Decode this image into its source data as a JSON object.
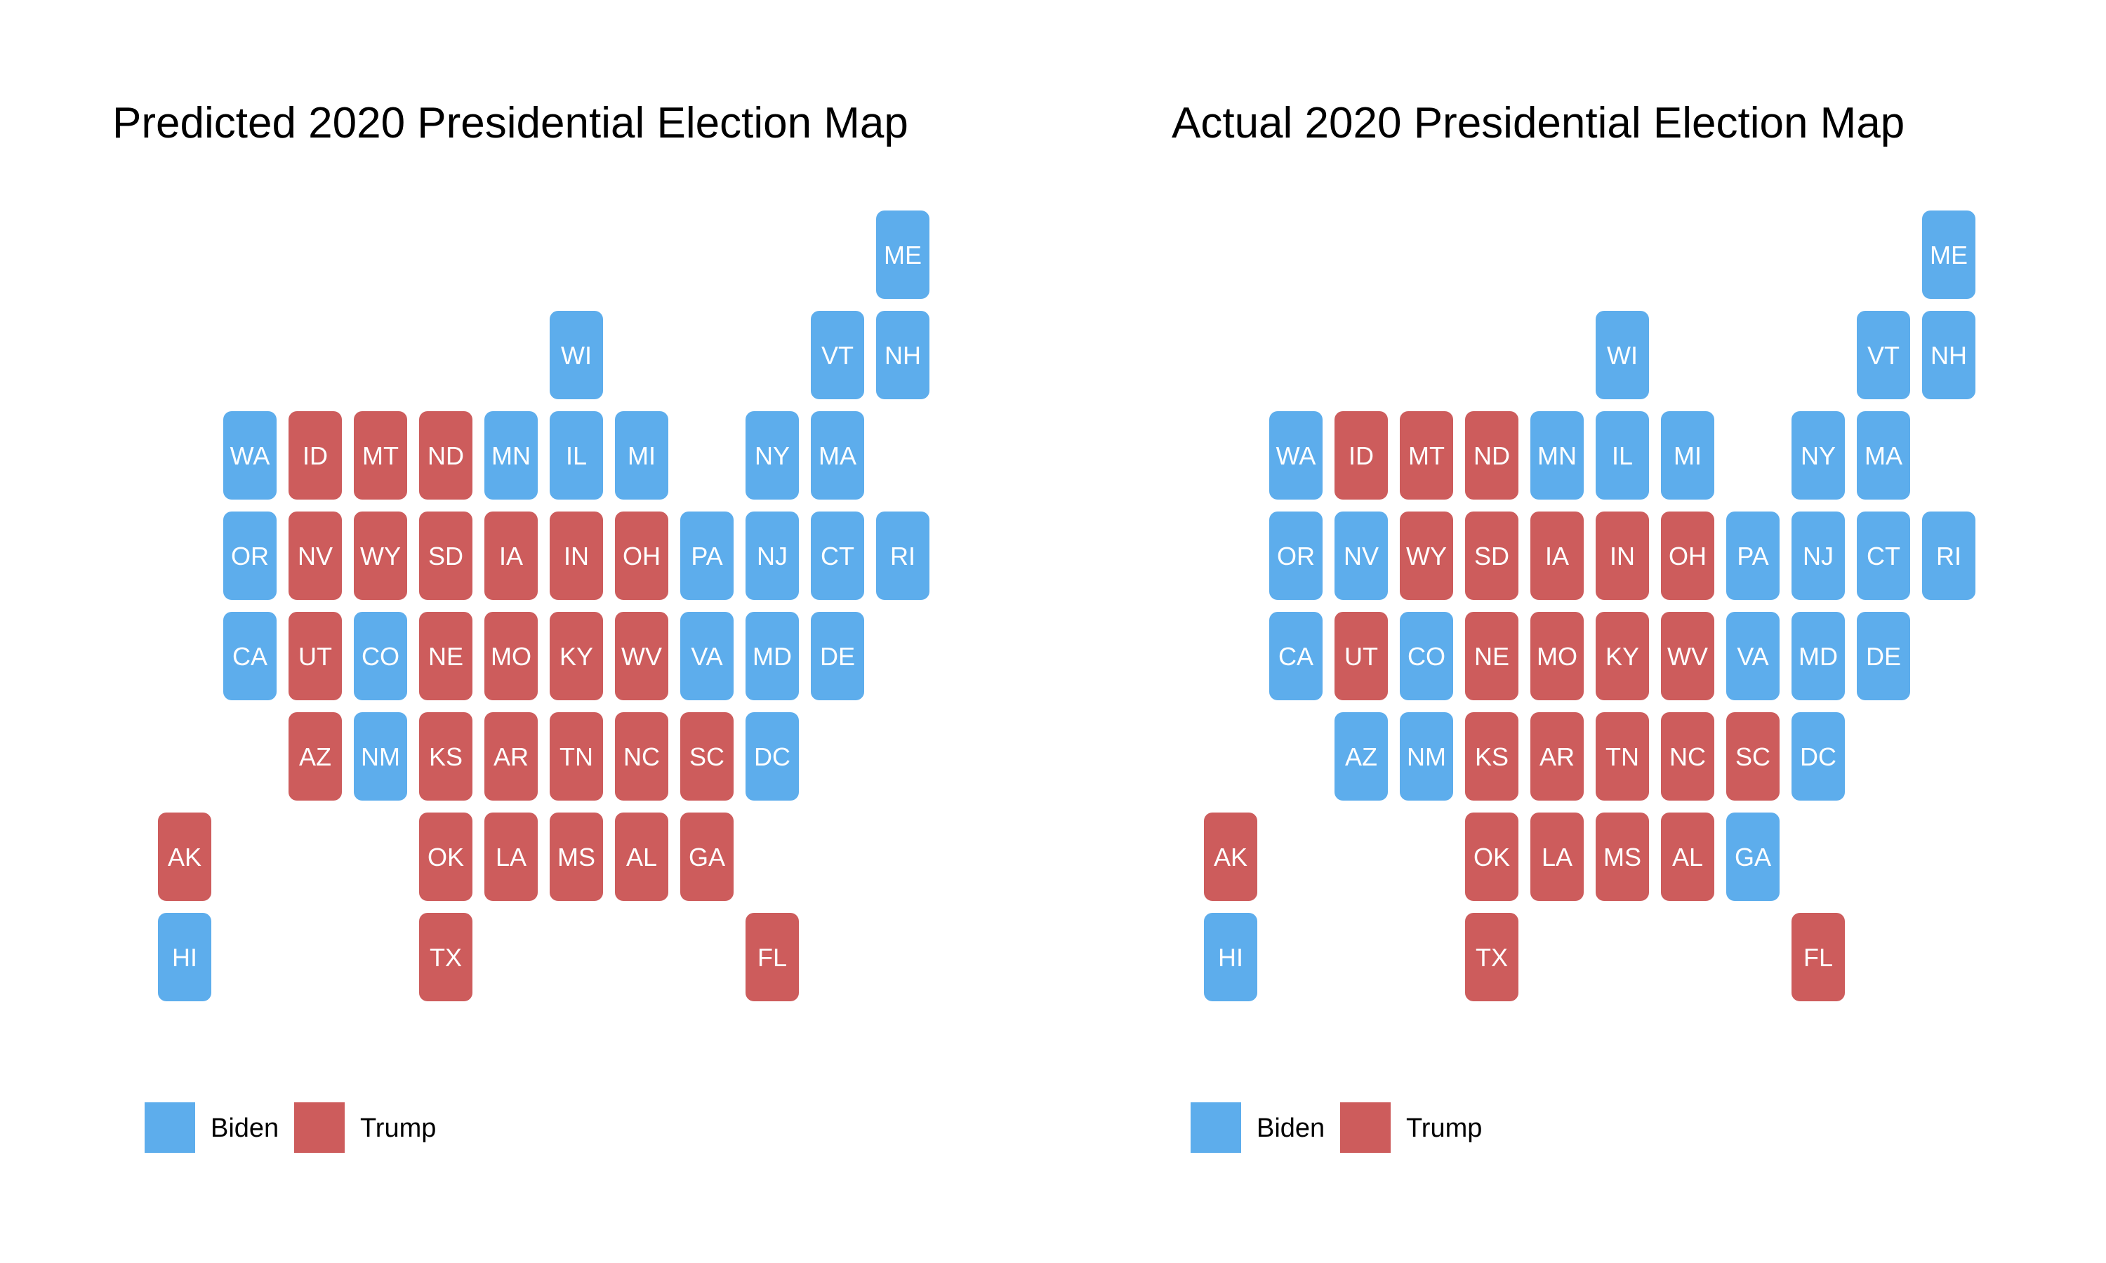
{
  "chart_data": [
    {
      "type": "tile-map",
      "title": "Predicted 2020 Presidential Election Map",
      "legend": {
        "placement": "bottom-left",
        "entries": [
          {
            "key": "D",
            "label": "Biden"
          },
          {
            "key": "R",
            "label": "Trump"
          }
        ]
      },
      "states": [
        {
          "abbr": "ME",
          "col": 11,
          "row": 0,
          "party": "D"
        },
        {
          "abbr": "WI",
          "col": 6,
          "row": 1,
          "party": "D"
        },
        {
          "abbr": "VT",
          "col": 10,
          "row": 1,
          "party": "D"
        },
        {
          "abbr": "NH",
          "col": 11,
          "row": 1,
          "party": "D"
        },
        {
          "abbr": "WA",
          "col": 1,
          "row": 2,
          "party": "D"
        },
        {
          "abbr": "ID",
          "col": 2,
          "row": 2,
          "party": "R"
        },
        {
          "abbr": "MT",
          "col": 3,
          "row": 2,
          "party": "R"
        },
        {
          "abbr": "ND",
          "col": 4,
          "row": 2,
          "party": "R"
        },
        {
          "abbr": "MN",
          "col": 5,
          "row": 2,
          "party": "D"
        },
        {
          "abbr": "IL",
          "col": 6,
          "row": 2,
          "party": "D"
        },
        {
          "abbr": "MI",
          "col": 7,
          "row": 2,
          "party": "D"
        },
        {
          "abbr": "NY",
          "col": 9,
          "row": 2,
          "party": "D"
        },
        {
          "abbr": "MA",
          "col": 10,
          "row": 2,
          "party": "D"
        },
        {
          "abbr": "OR",
          "col": 1,
          "row": 3,
          "party": "D"
        },
        {
          "abbr": "NV",
          "col": 2,
          "row": 3,
          "party": "R"
        },
        {
          "abbr": "WY",
          "col": 3,
          "row": 3,
          "party": "R"
        },
        {
          "abbr": "SD",
          "col": 4,
          "row": 3,
          "party": "R"
        },
        {
          "abbr": "IA",
          "col": 5,
          "row": 3,
          "party": "R"
        },
        {
          "abbr": "IN",
          "col": 6,
          "row": 3,
          "party": "R"
        },
        {
          "abbr": "OH",
          "col": 7,
          "row": 3,
          "party": "R"
        },
        {
          "abbr": "PA",
          "col": 8,
          "row": 3,
          "party": "D"
        },
        {
          "abbr": "NJ",
          "col": 9,
          "row": 3,
          "party": "D"
        },
        {
          "abbr": "CT",
          "col": 10,
          "row": 3,
          "party": "D"
        },
        {
          "abbr": "RI",
          "col": 11,
          "row": 3,
          "party": "D"
        },
        {
          "abbr": "CA",
          "col": 1,
          "row": 4,
          "party": "D"
        },
        {
          "abbr": "UT",
          "col": 2,
          "row": 4,
          "party": "R"
        },
        {
          "abbr": "CO",
          "col": 3,
          "row": 4,
          "party": "D"
        },
        {
          "abbr": "NE",
          "col": 4,
          "row": 4,
          "party": "R"
        },
        {
          "abbr": "MO",
          "col": 5,
          "row": 4,
          "party": "R"
        },
        {
          "abbr": "KY",
          "col": 6,
          "row": 4,
          "party": "R"
        },
        {
          "abbr": "WV",
          "col": 7,
          "row": 4,
          "party": "R"
        },
        {
          "abbr": "VA",
          "col": 8,
          "row": 4,
          "party": "D"
        },
        {
          "abbr": "MD",
          "col": 9,
          "row": 4,
          "party": "D"
        },
        {
          "abbr": "DE",
          "col": 10,
          "row": 4,
          "party": "D"
        },
        {
          "abbr": "AZ",
          "col": 2,
          "row": 5,
          "party": "R"
        },
        {
          "abbr": "NM",
          "col": 3,
          "row": 5,
          "party": "D"
        },
        {
          "abbr": "KS",
          "col": 4,
          "row": 5,
          "party": "R"
        },
        {
          "abbr": "AR",
          "col": 5,
          "row": 5,
          "party": "R"
        },
        {
          "abbr": "TN",
          "col": 6,
          "row": 5,
          "party": "R"
        },
        {
          "abbr": "NC",
          "col": 7,
          "row": 5,
          "party": "R"
        },
        {
          "abbr": "SC",
          "col": 8,
          "row": 5,
          "party": "R"
        },
        {
          "abbr": "DC",
          "col": 9,
          "row": 5,
          "party": "D"
        },
        {
          "abbr": "AK",
          "col": 0,
          "row": 6,
          "party": "R"
        },
        {
          "abbr": "OK",
          "col": 4,
          "row": 6,
          "party": "R"
        },
        {
          "abbr": "LA",
          "col": 5,
          "row": 6,
          "party": "R"
        },
        {
          "abbr": "MS",
          "col": 6,
          "row": 6,
          "party": "R"
        },
        {
          "abbr": "AL",
          "col": 7,
          "row": 6,
          "party": "R"
        },
        {
          "abbr": "GA",
          "col": 8,
          "row": 6,
          "party": "R"
        },
        {
          "abbr": "HI",
          "col": 0,
          "row": 7,
          "party": "D"
        },
        {
          "abbr": "TX",
          "col": 4,
          "row": 7,
          "party": "R"
        },
        {
          "abbr": "FL",
          "col": 9,
          "row": 7,
          "party": "R"
        }
      ]
    },
    {
      "type": "tile-map",
      "title": "Actual 2020 Presidential Election Map",
      "legend": {
        "placement": "bottom-left",
        "entries": [
          {
            "key": "D",
            "label": "Biden"
          },
          {
            "key": "R",
            "label": "Trump"
          }
        ]
      },
      "states": [
        {
          "abbr": "ME",
          "col": 11,
          "row": 0,
          "party": "D"
        },
        {
          "abbr": "WI",
          "col": 6,
          "row": 1,
          "party": "D"
        },
        {
          "abbr": "VT",
          "col": 10,
          "row": 1,
          "party": "D"
        },
        {
          "abbr": "NH",
          "col": 11,
          "row": 1,
          "party": "D"
        },
        {
          "abbr": "WA",
          "col": 1,
          "row": 2,
          "party": "D"
        },
        {
          "abbr": "ID",
          "col": 2,
          "row": 2,
          "party": "R"
        },
        {
          "abbr": "MT",
          "col": 3,
          "row": 2,
          "party": "R"
        },
        {
          "abbr": "ND",
          "col": 4,
          "row": 2,
          "party": "R"
        },
        {
          "abbr": "MN",
          "col": 5,
          "row": 2,
          "party": "D"
        },
        {
          "abbr": "IL",
          "col": 6,
          "row": 2,
          "party": "D"
        },
        {
          "abbr": "MI",
          "col": 7,
          "row": 2,
          "party": "D"
        },
        {
          "abbr": "NY",
          "col": 9,
          "row": 2,
          "party": "D"
        },
        {
          "abbr": "MA",
          "col": 10,
          "row": 2,
          "party": "D"
        },
        {
          "abbr": "OR",
          "col": 1,
          "row": 3,
          "party": "D"
        },
        {
          "abbr": "NV",
          "col": 2,
          "row": 3,
          "party": "D"
        },
        {
          "abbr": "WY",
          "col": 3,
          "row": 3,
          "party": "R"
        },
        {
          "abbr": "SD",
          "col": 4,
          "row": 3,
          "party": "R"
        },
        {
          "abbr": "IA",
          "col": 5,
          "row": 3,
          "party": "R"
        },
        {
          "abbr": "IN",
          "col": 6,
          "row": 3,
          "party": "R"
        },
        {
          "abbr": "OH",
          "col": 7,
          "row": 3,
          "party": "R"
        },
        {
          "abbr": "PA",
          "col": 8,
          "row": 3,
          "party": "D"
        },
        {
          "abbr": "NJ",
          "col": 9,
          "row": 3,
          "party": "D"
        },
        {
          "abbr": "CT",
          "col": 10,
          "row": 3,
          "party": "D"
        },
        {
          "abbr": "RI",
          "col": 11,
          "row": 3,
          "party": "D"
        },
        {
          "abbr": "CA",
          "col": 1,
          "row": 4,
          "party": "D"
        },
        {
          "abbr": "UT",
          "col": 2,
          "row": 4,
          "party": "R"
        },
        {
          "abbr": "CO",
          "col": 3,
          "row": 4,
          "party": "D"
        },
        {
          "abbr": "NE",
          "col": 4,
          "row": 4,
          "party": "R"
        },
        {
          "abbr": "MO",
          "col": 5,
          "row": 4,
          "party": "R"
        },
        {
          "abbr": "KY",
          "col": 6,
          "row": 4,
          "party": "R"
        },
        {
          "abbr": "WV",
          "col": 7,
          "row": 4,
          "party": "R"
        },
        {
          "abbr": "VA",
          "col": 8,
          "row": 4,
          "party": "D"
        },
        {
          "abbr": "MD",
          "col": 9,
          "row": 4,
          "party": "D"
        },
        {
          "abbr": "DE",
          "col": 10,
          "row": 4,
          "party": "D"
        },
        {
          "abbr": "AZ",
          "col": 2,
          "row": 5,
          "party": "D"
        },
        {
          "abbr": "NM",
          "col": 3,
          "row": 5,
          "party": "D"
        },
        {
          "abbr": "KS",
          "col": 4,
          "row": 5,
          "party": "R"
        },
        {
          "abbr": "AR",
          "col": 5,
          "row": 5,
          "party": "R"
        },
        {
          "abbr": "TN",
          "col": 6,
          "row": 5,
          "party": "R"
        },
        {
          "abbr": "NC",
          "col": 7,
          "row": 5,
          "party": "R"
        },
        {
          "abbr": "SC",
          "col": 8,
          "row": 5,
          "party": "R"
        },
        {
          "abbr": "DC",
          "col": 9,
          "row": 5,
          "party": "D"
        },
        {
          "abbr": "AK",
          "col": 0,
          "row": 6,
          "party": "R"
        },
        {
          "abbr": "OK",
          "col": 4,
          "row": 6,
          "party": "R"
        },
        {
          "abbr": "LA",
          "col": 5,
          "row": 6,
          "party": "R"
        },
        {
          "abbr": "MS",
          "col": 6,
          "row": 6,
          "party": "R"
        },
        {
          "abbr": "AL",
          "col": 7,
          "row": 6,
          "party": "R"
        },
        {
          "abbr": "GA",
          "col": 8,
          "row": 6,
          "party": "D"
        },
        {
          "abbr": "HI",
          "col": 0,
          "row": 7,
          "party": "D"
        },
        {
          "abbr": "TX",
          "col": 4,
          "row": 7,
          "party": "R"
        },
        {
          "abbr": "FL",
          "col": 9,
          "row": 7,
          "party": "R"
        }
      ]
    }
  ],
  "colors": {
    "D": "#5DADEC",
    "R": "#CD5C5C",
    "label": "#ffffff",
    "background": "#ffffff"
  }
}
